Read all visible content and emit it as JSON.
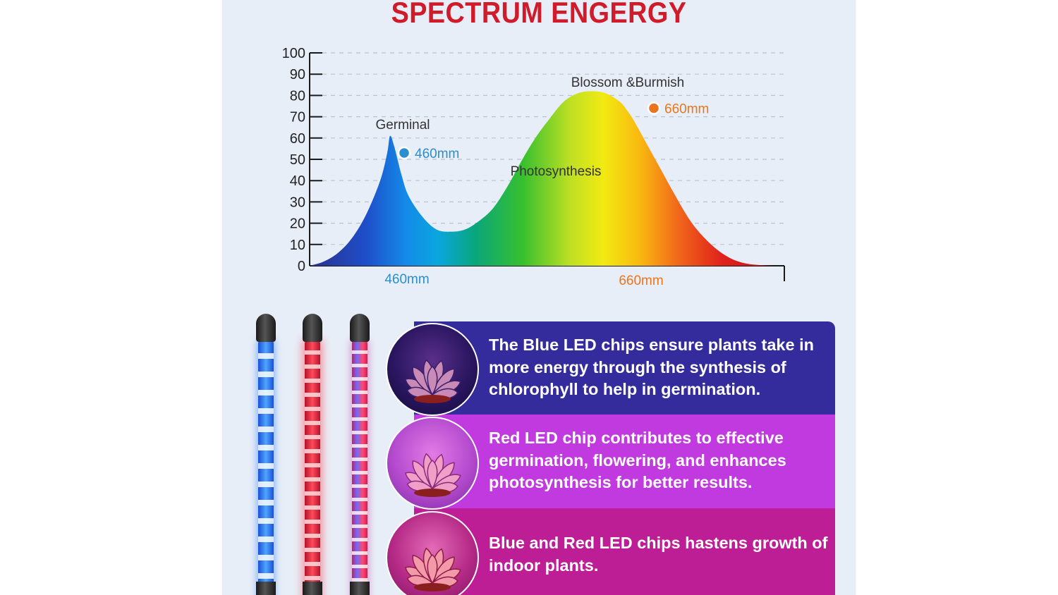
{
  "title": "SPECTRUM ENGERGY",
  "chart_data": {
    "type": "area",
    "title": "SPECTRUM ENGERGY",
    "ylim": [
      0,
      100
    ],
    "yticks": [
      "100",
      "90",
      "80",
      "70",
      "60",
      "50",
      "40",
      "30",
      "20",
      "10",
      "0"
    ],
    "grid": true,
    "xtick_labels": [
      {
        "label": "460mm",
        "color": "#2a8ed1"
      },
      {
        "label": "660mm",
        "color": "#e9761e"
      }
    ],
    "curve": {
      "x": [
        0,
        20,
        40,
        60,
        80,
        100,
        110,
        114,
        120,
        130,
        140,
        160,
        180,
        200,
        220,
        240,
        260,
        280,
        300,
        320,
        340,
        360,
        380,
        400,
        420,
        440,
        450,
        460,
        480,
        500,
        520,
        540,
        560,
        580,
        600,
        620,
        640,
        660,
        672
      ],
      "y": [
        0,
        2,
        6,
        13,
        24,
        40,
        53,
        61,
        56,
        43,
        33,
        23,
        17,
        16,
        17,
        21,
        27,
        37,
        49,
        60,
        69,
        77,
        81,
        82,
        81,
        77,
        73,
        68,
        56,
        44,
        32,
        21,
        13,
        7,
        3,
        1,
        0.3,
        0,
        0
      ]
    },
    "annotations": [
      {
        "label": "Germinal",
        "color": "#333333"
      },
      {
        "label": "Blossom &Burmish",
        "color": "#333333"
      },
      {
        "label": "Photosynthesis",
        "color": "#333333"
      }
    ],
    "markers": [
      {
        "label": "460mm",
        "x": 134,
        "y": 53,
        "color": "#2a8ed1"
      },
      {
        "label": "660mm",
        "x": 488,
        "y": 74,
        "color": "#e9761e"
      }
    ]
  },
  "info_boxes": [
    {
      "text": "The Blue LED chips ensure plants take in more energy through the synthesis of chlorophyll to help in germination.",
      "color": "#342b9c"
    },
    {
      "text": "Red LED chip contributes to effective germination, flowering, and enhances photosynthesis for better results.",
      "color": "#c03adf"
    },
    {
      "text": "Blue and Red LED chips hastens growth of indoor plants.",
      "color": "#bd1d95"
    }
  ],
  "lamps": [
    "blue",
    "red",
    "blue-red"
  ]
}
